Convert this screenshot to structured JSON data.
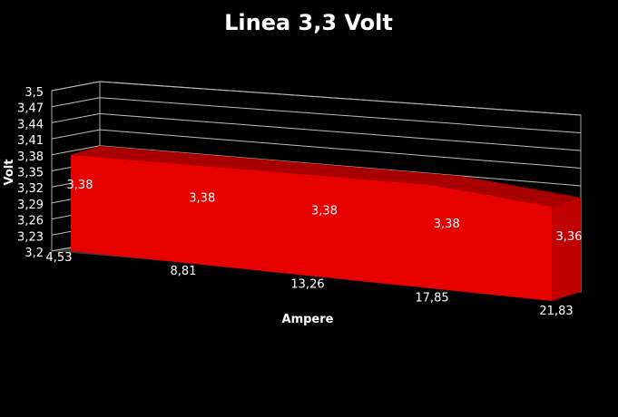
{
  "chart_data": {
    "type": "area",
    "title": "Linea 3,3 Volt",
    "xlabel": "Ampere",
    "ylabel": "Volt",
    "categories": [
      "4,53",
      "8,81",
      "13,26",
      "17,85",
      "21,83"
    ],
    "values": [
      3.38,
      3.38,
      3.38,
      3.38,
      3.36
    ],
    "data_labels": [
      "3,38",
      "3,38",
      "3,38",
      "3,38",
      "3,36"
    ],
    "y_ticks": [
      "3,2",
      "3,23",
      "3,26",
      "3,29",
      "3,32",
      "3,35",
      "3,38",
      "3,41",
      "3,44",
      "3,47",
      "3,5"
    ],
    "ylim": [
      3.2,
      3.5
    ],
    "grid": true,
    "style": "3d",
    "colors": {
      "background": "#000000",
      "series": "#e60000",
      "series_top": "#a80000",
      "series_side": "#c00000",
      "grid": "#bdbdbd",
      "wall": "#a9a9a9",
      "floor": "#3a3a3a"
    }
  }
}
